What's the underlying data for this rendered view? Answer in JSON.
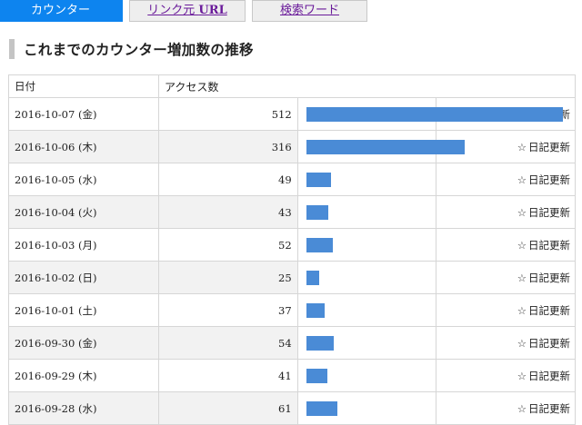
{
  "tabs": [
    {
      "label": "カウンター",
      "active": true
    },
    {
      "label_prefix": "リンク元 ",
      "label_suffix": "URL",
      "active": false
    },
    {
      "label": "検索ワード",
      "active": false
    }
  ],
  "heading": "これまでのカウンター増加数の推移",
  "table": {
    "headers": {
      "date": "日付",
      "access": "アクセス数"
    },
    "max_count": 512,
    "rows": [
      {
        "date": "2016-10-07 (金)",
        "count": "512",
        "diary": "日記更新"
      },
      {
        "date": "2016-10-06 (木)",
        "count": "316",
        "diary": "日記更新"
      },
      {
        "date": "2016-10-05 (水)",
        "count": "49",
        "diary": "日記更新"
      },
      {
        "date": "2016-10-04 (火)",
        "count": "43",
        "diary": "日記更新"
      },
      {
        "date": "2016-10-03 (月)",
        "count": "52",
        "diary": "日記更新"
      },
      {
        "date": "2016-10-02 (日)",
        "count": "25",
        "diary": "日記更新"
      },
      {
        "date": "2016-10-01 (土)",
        "count": "37",
        "diary": "日記更新"
      },
      {
        "date": "2016-09-30 (金)",
        "count": "54",
        "diary": "日記更新"
      },
      {
        "date": "2016-09-29 (木)",
        "count": "41",
        "diary": "日記更新"
      },
      {
        "date": "2016-09-28 (水)",
        "count": "61",
        "diary": "日記更新"
      }
    ]
  },
  "icons": {
    "diary": "star-outline-icon"
  },
  "colors": {
    "tab_active": "#0d84ef",
    "bar": "#4a8bd6",
    "visited_link": "#6a1b9a"
  }
}
